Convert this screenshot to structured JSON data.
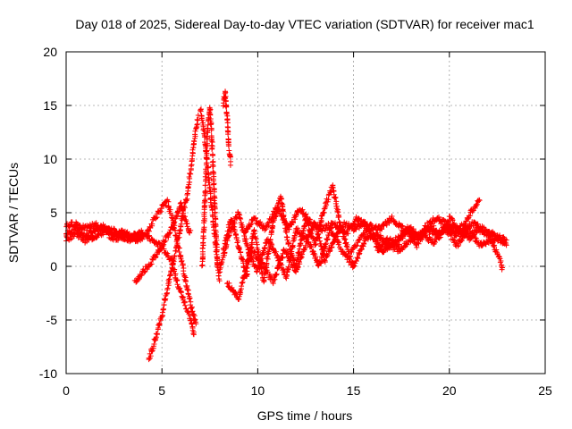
{
  "chart_data": {
    "type": "scatter",
    "title": "Day 018 of 2025, Sidereal Day-to-day VTEC variation (SDTVAR) for receiver mac1",
    "xlabel": "GPS time / hours",
    "ylabel": "SDTVAR / TECUs",
    "xlim": [
      0,
      25
    ],
    "ylim": [
      -10,
      20
    ],
    "xticks": [
      0,
      5,
      10,
      15,
      20,
      25
    ],
    "yticks": [
      -10,
      -5,
      0,
      5,
      10,
      15,
      20
    ],
    "xtick_labels": [
      "0",
      "5",
      "10",
      "15",
      "20",
      "25"
    ],
    "ytick_labels": [
      "-10",
      "-5",
      "0",
      "5",
      "10",
      "15",
      "20"
    ],
    "grid": true,
    "marker": "+",
    "series": [
      {
        "name": "mac1",
        "color": "#ff0000",
        "segments": [
          [
            [
              0.0,
              3.0
            ],
            [
              0.5,
              3.6
            ],
            [
              1.0,
              2.8
            ],
            [
              1.5,
              3.3
            ],
            [
              2.0,
              3.8
            ],
            [
              2.5,
              2.9
            ],
            [
              3.0,
              3.2
            ],
            [
              3.5,
              2.6
            ],
            [
              4.0,
              3.1
            ],
            [
              4.5,
              2.4
            ],
            [
              5.0,
              1.8
            ],
            [
              5.5,
              0.6
            ],
            [
              5.8,
              -1.5
            ],
            [
              6.2,
              -3.5
            ],
            [
              6.5,
              -5.0
            ],
            [
              6.7,
              -6.5
            ]
          ],
          [
            [
              0.0,
              2.5
            ],
            [
              0.5,
              3.1
            ],
            [
              1.0,
              2.4
            ],
            [
              1.5,
              2.8
            ],
            [
              2.0,
              3.2
            ],
            [
              2.5,
              2.6
            ],
            [
              3.0,
              2.8
            ],
            [
              3.5,
              2.3
            ],
            [
              4.0,
              2.7
            ]
          ],
          [
            [
              0.0,
              3.8
            ],
            [
              0.5,
              4.0
            ],
            [
              1.0,
              3.5
            ],
            [
              1.5,
              3.9
            ],
            [
              2.0,
              3.4
            ],
            [
              2.5,
              3.3
            ],
            [
              3.0,
              2.7
            ],
            [
              3.5,
              2.9
            ],
            [
              4.0,
              3.2
            ]
          ],
          [
            [
              3.6,
              -1.5
            ],
            [
              4.0,
              -0.5
            ],
            [
              4.5,
              0.5
            ],
            [
              5.0,
              2.0
            ],
            [
              5.5,
              3.5
            ],
            [
              5.8,
              4.8
            ],
            [
              6.0,
              5.8
            ],
            [
              6.2,
              4.5
            ],
            [
              6.5,
              3.0
            ]
          ],
          [
            [
              4.3,
              -8.8
            ],
            [
              4.7,
              -6.5
            ],
            [
              5.0,
              -4.5
            ],
            [
              5.3,
              -2.0
            ],
            [
              5.6,
              0.5
            ],
            [
              5.9,
              3.0
            ],
            [
              6.1,
              5.0
            ],
            [
              6.3,
              6.5
            ],
            [
              6.5,
              9.0
            ],
            [
              6.7,
              12.0
            ],
            [
              6.9,
              14.0
            ]
          ],
          [
            [
              4.2,
              3.0
            ],
            [
              4.6,
              4.5
            ],
            [
              5.0,
              5.5
            ],
            [
              5.3,
              6.0
            ],
            [
              5.6,
              4.0
            ],
            [
              5.9,
              1.5
            ],
            [
              6.2,
              -1.0
            ],
            [
              6.5,
              -3.5
            ],
            [
              6.8,
              -5.5
            ]
          ],
          [
            [
              7.1,
              0.0
            ],
            [
              7.2,
              4.0
            ],
            [
              7.3,
              9.0
            ],
            [
              7.4,
              13.5
            ],
            [
              7.5,
              14.8
            ],
            [
              7.6,
              12.0
            ],
            [
              7.7,
              8.0
            ],
            [
              7.8,
              4.0
            ],
            [
              7.9,
              0.0
            ]
          ],
          [
            [
              7.0,
              14.8
            ],
            [
              7.2,
              12.5
            ],
            [
              7.4,
              9.0
            ],
            [
              7.6,
              5.5
            ],
            [
              7.8,
              2.0
            ],
            [
              8.0,
              -1.5
            ]
          ],
          [
            [
              8.2,
              15.0
            ],
            [
              8.3,
              16.2
            ],
            [
              8.4,
              14.0
            ],
            [
              8.5,
              11.0
            ],
            [
              8.6,
              9.5
            ]
          ],
          [
            [
              8.2,
              1.5
            ],
            [
              8.6,
              4.5
            ],
            [
              9.0,
              2.0
            ],
            [
              9.4,
              -1.0
            ],
            [
              9.8,
              3.5
            ],
            [
              10.3,
              -1.5
            ],
            [
              10.8,
              4.0
            ],
            [
              11.2,
              6.5
            ],
            [
              11.6,
              2.0
            ],
            [
              12.0,
              0.0
            ],
            [
              12.5,
              4.5
            ],
            [
              13.0,
              2.0
            ],
            [
              13.5,
              5.5
            ],
            [
              13.9,
              7.5
            ],
            [
              14.3,
              4.0
            ],
            [
              14.8,
              1.0
            ],
            [
              15.3,
              2.5
            ],
            [
              15.8,
              3.5
            ],
            [
              16.3,
              1.5
            ],
            [
              16.8,
              2.5
            ],
            [
              17.3,
              2.0
            ],
            [
              17.8,
              3.5
            ],
            [
              18.3,
              2.0
            ],
            [
              18.8,
              3.8
            ],
            [
              19.3,
              4.5
            ],
            [
              19.8,
              4.0
            ],
            [
              20.3,
              3.0
            ],
            [
              20.8,
              4.0
            ],
            [
              21.3,
              5.5
            ],
            [
              21.6,
              6.2
            ]
          ],
          [
            [
              8.0,
              -0.5
            ],
            [
              8.5,
              3.0
            ],
            [
              9.0,
              5.0
            ],
            [
              9.5,
              1.5
            ],
            [
              10.0,
              -0.5
            ],
            [
              10.5,
              2.5
            ],
            [
              11.0,
              1.0
            ],
            [
              11.5,
              -1.0
            ],
            [
              12.0,
              3.5
            ],
            [
              12.5,
              2.5
            ],
            [
              13.0,
              4.0
            ],
            [
              13.5,
              0.5
            ],
            [
              14.0,
              2.5
            ],
            [
              14.5,
              4.0
            ],
            [
              15.0,
              3.5
            ],
            [
              15.5,
              4.0
            ],
            [
              16.0,
              3.0
            ],
            [
              16.5,
              1.5
            ],
            [
              17.0,
              2.0
            ],
            [
              17.5,
              3.0
            ],
            [
              18.0,
              3.5
            ],
            [
              18.5,
              2.5
            ],
            [
              19.0,
              3.8
            ],
            [
              19.5,
              3.0
            ],
            [
              20.0,
              4.5
            ],
            [
              20.5,
              3.5
            ],
            [
              21.0,
              2.5
            ],
            [
              21.5,
              3.5
            ],
            [
              22.0,
              3.0
            ],
            [
              22.5,
              2.5
            ],
            [
              23.0,
              2.0
            ]
          ],
          [
            [
              8.4,
              -1.5
            ],
            [
              9.0,
              -3.0
            ],
            [
              9.6,
              1.5
            ],
            [
              10.2,
              0.5
            ],
            [
              10.8,
              -1.5
            ],
            [
              11.4,
              1.5
            ],
            [
              12.0,
              -0.5
            ],
            [
              12.6,
              2.5
            ],
            [
              13.2,
              0.0
            ],
            [
              13.8,
              3.5
            ],
            [
              14.4,
              1.5
            ],
            [
              15.0,
              0.0
            ],
            [
              15.6,
              2.5
            ],
            [
              16.2,
              3.0
            ],
            [
              16.8,
              2.0
            ],
            [
              17.4,
              1.5
            ],
            [
              18.0,
              2.5
            ],
            [
              18.6,
              3.0
            ],
            [
              19.2,
              2.2
            ],
            [
              19.8,
              3.5
            ],
            [
              20.4,
              2.0
            ],
            [
              21.0,
              3.5
            ],
            [
              21.6,
              2.0
            ],
            [
              22.2,
              2.5
            ],
            [
              22.8,
              -0.3
            ]
          ],
          [
            [
              9.3,
              3.0
            ],
            [
              9.8,
              4.5
            ],
            [
              10.4,
              3.5
            ],
            [
              11.0,
              5.5
            ],
            [
              11.6,
              3.5
            ],
            [
              12.2,
              5.5
            ],
            [
              12.8,
              4.0
            ],
            [
              13.4,
              3.5
            ],
            [
              14.0,
              4.0
            ],
            [
              14.6,
              3.0
            ],
            [
              15.2,
              4.5
            ],
            [
              15.8,
              3.8
            ],
            [
              16.4,
              3.5
            ],
            [
              17.0,
              4.5
            ],
            [
              17.6,
              3.5
            ],
            [
              18.2,
              2.5
            ],
            [
              18.8,
              3.5
            ],
            [
              19.4,
              3.0
            ],
            [
              20.0,
              3.8
            ],
            [
              20.6,
              3.0
            ],
            [
              21.2,
              4.0
            ],
            [
              21.8,
              3.5
            ],
            [
              22.4,
              2.8
            ],
            [
              23.0,
              2.4
            ]
          ]
        ]
      }
    ]
  }
}
